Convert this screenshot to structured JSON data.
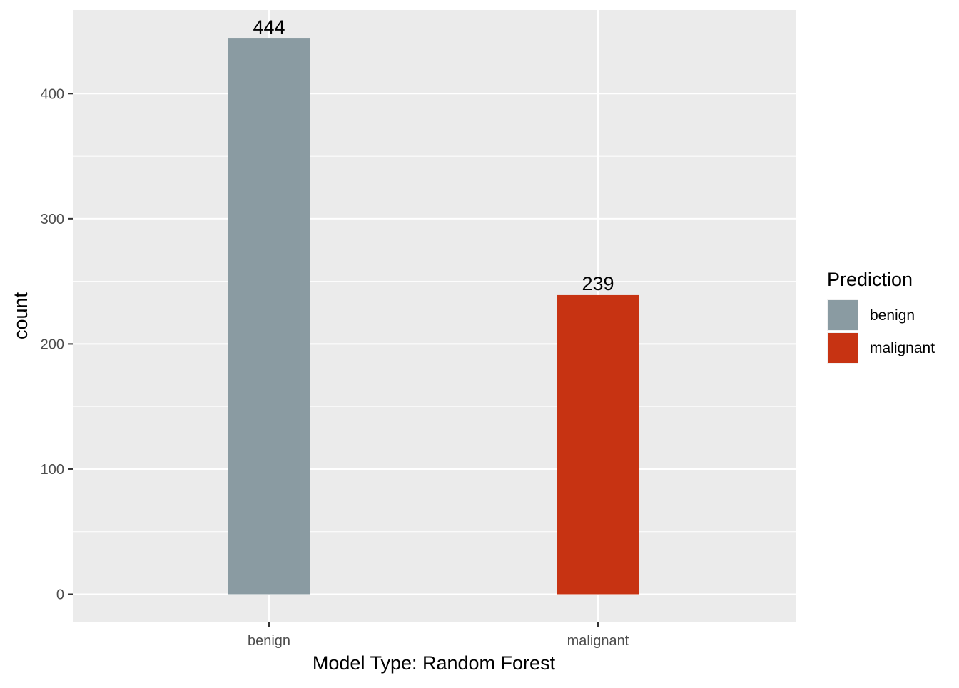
{
  "chart_data": {
    "type": "bar",
    "title": "",
    "xlabel": "Model Type:  Random Forest",
    "ylabel": "count",
    "categories": [
      "benign",
      "malignant"
    ],
    "values": [
      444,
      239
    ],
    "data_labels": [
      "444",
      "239"
    ],
    "ylim": [
      0,
      444
    ],
    "y_ticks": [
      0,
      100,
      200,
      300,
      400
    ],
    "y_tick_labels": [
      "0",
      "100",
      "200",
      "300",
      "400"
    ],
    "grid": true,
    "legend": {
      "title": "Prediction",
      "placement": "right",
      "entries": [
        {
          "label": "benign",
          "color": "#8A9BA2"
        },
        {
          "label": "malignant",
          "color": "#C73312"
        }
      ]
    },
    "colors": {
      "panel_background": "#EBEBEB",
      "grid": "#FFFFFF",
      "axis_text": "#4D4D4D",
      "title_text": "#000000"
    }
  }
}
